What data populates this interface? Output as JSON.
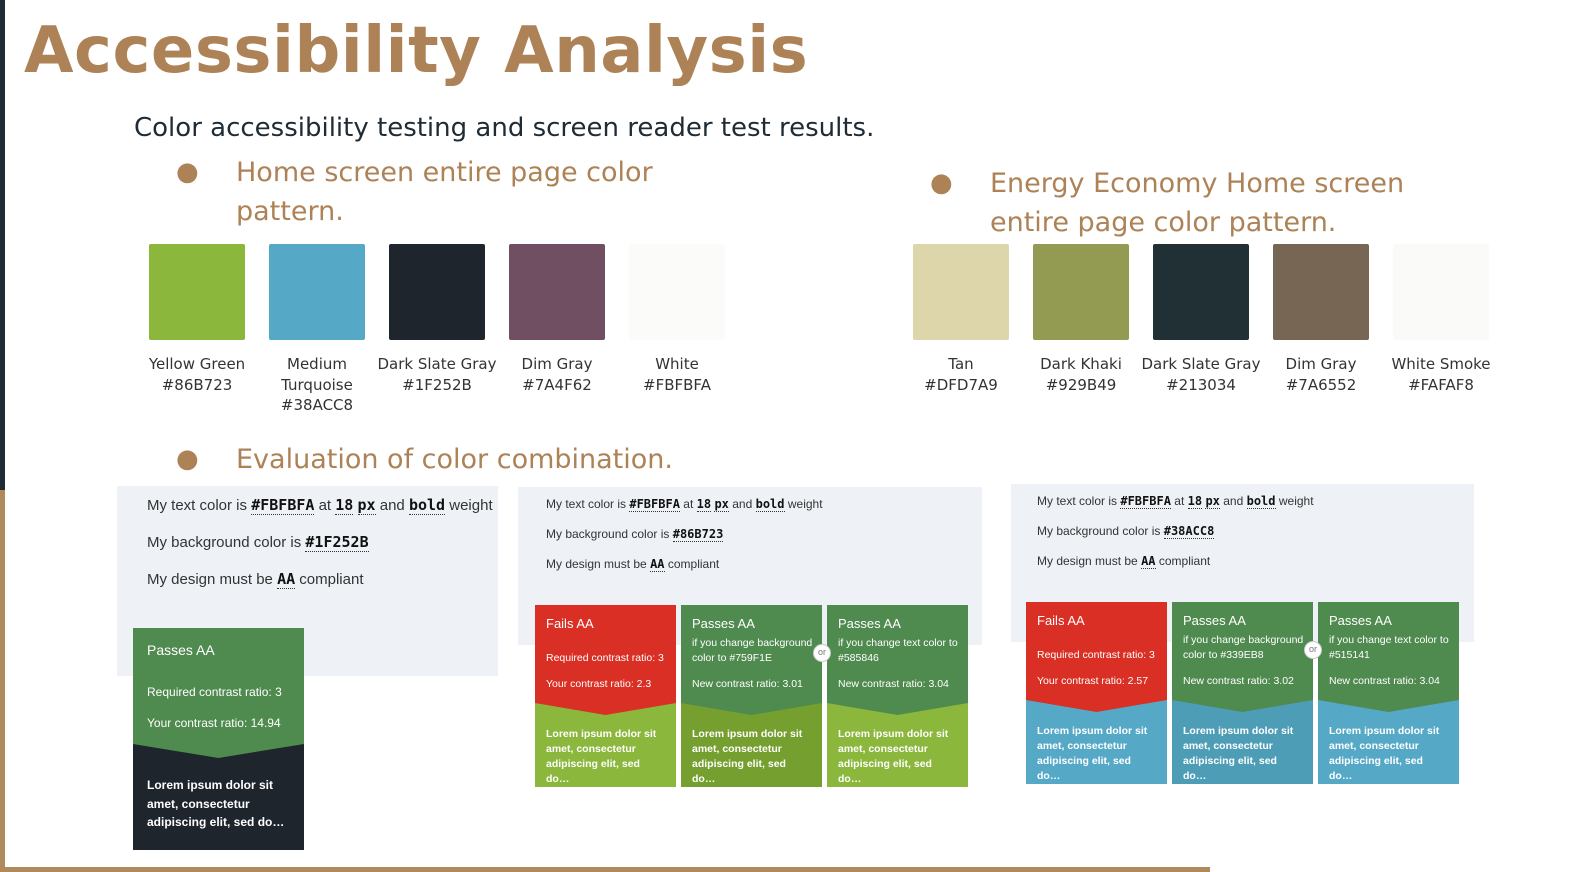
{
  "title": "Accessibility Analysis",
  "subtitle": "Color accessibility testing and screen reader test results.",
  "bullets": {
    "home": "Home screen entire page color pattern.",
    "energy": "Energy Economy Home screen entire page color pattern.",
    "evaluation": "Evaluation of color combination."
  },
  "home_palette": [
    {
      "name": "Yellow Green",
      "hex": "#86B723",
      "color": "#8ab73c"
    },
    {
      "name": "Medium Turquoise",
      "hex": "#38ACC8",
      "color": "#55a9c7"
    },
    {
      "name": "Dark Slate Gray",
      "hex": "#1F252B",
      "color": "#1f252c"
    },
    {
      "name": "Dim Gray",
      "hex": "#7A4F62",
      "color": "#714f62"
    },
    {
      "name": "White",
      "hex": "#FBFBFA",
      "color": "#fbfbfa"
    }
  ],
  "energy_palette": [
    {
      "name": "Tan",
      "hex": "#DFD7A9",
      "color": "#ddd6ab"
    },
    {
      "name": "Dark Khaki",
      "hex": "#929B49",
      "color": "#939a51"
    },
    {
      "name": "Dark Slate Gray",
      "hex": "#213034",
      "color": "#213034"
    },
    {
      "name": "Dim Gray",
      "hex": "#7A6552",
      "color": "#776653"
    },
    {
      "name": "White Smoke",
      "hex": "#FAFAF8",
      "color": "#fafaf8"
    }
  ],
  "common": {
    "text_prefix": "My text color is",
    "at": "at",
    "size": "18",
    "px": "px",
    "and": "and",
    "bold": "bold",
    "weight": "weight",
    "bg_prefix": "My background color is",
    "design_prefix": "My design must be",
    "aa": "AA",
    "compliant": "compliant",
    "or": "or",
    "lorem": "Lorem ipsum dolor sit amet, consectetur adipiscing elit, sed do…"
  },
  "eval1": {
    "text_color": "#FBFBFA",
    "bg_color": "#1F252B",
    "card": {
      "title": "Passes AA",
      "required": "Required contrast ratio: 3",
      "yours": "Your contrast ratio: 14.94"
    }
  },
  "eval2": {
    "text_color": "#FBFBFA",
    "bg_color": "#86B723",
    "cards": [
      {
        "title": "Fails AA",
        "l1": "Required contrast ratio: 3",
        "l2": "Your contrast ratio: 2.3",
        "head_color": "#d92f24",
        "body_color": "#8ab73c"
      },
      {
        "title": "Passes AA",
        "l1": "if you change background color to #759F1E",
        "l2": "New contrast ratio: 3.01",
        "head_color": "#4f8a4f",
        "body_color": "#759f2e"
      },
      {
        "title": "Passes AA",
        "l1": "if you change text color to #585846",
        "l2": "New contrast ratio: 3.04",
        "head_color": "#4f8a4f",
        "body_color": "#8ab73c"
      }
    ]
  },
  "eval3": {
    "text_color": "#FBFBFA",
    "bg_color": "#38ACC8",
    "cards": [
      {
        "title": "Fails AA",
        "l1": "Required contrast ratio: 3",
        "l2": "Your contrast ratio: 2.57",
        "head_color": "#d92f24",
        "body_color": "#55a9c7"
      },
      {
        "title": "Passes AA",
        "l1": "if you change background color to #339EB8",
        "l2": "New contrast ratio: 3.02",
        "head_color": "#4f8a4f",
        "body_color": "#4e9db7"
      },
      {
        "title": "Passes AA",
        "l1": "if you change text color to #515141",
        "l2": "New contrast ratio: 3.04",
        "head_color": "#4f8a4f",
        "body_color": "#55a9c7"
      }
    ]
  }
}
